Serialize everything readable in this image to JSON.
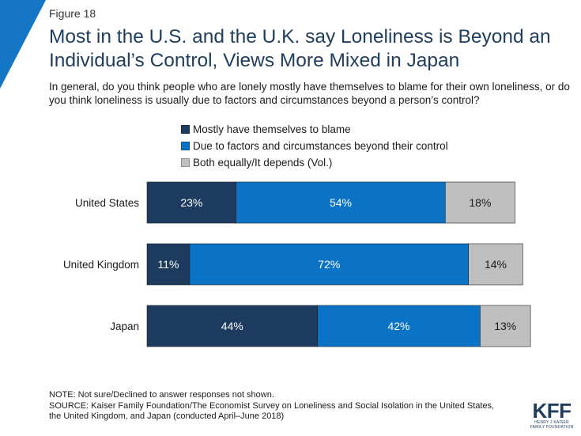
{
  "header": {
    "figure_label": "Figure 18",
    "title": "Most in the U.S. and the U.K. say Loneliness is Beyond an Individual’s Control, Views More Mixed in Japan",
    "subtitle": "In general, do you think people who are lonely mostly have themselves to blame for their own loneliness, or do you think loneliness is usually due to factors and circumstances beyond a person’s control?"
  },
  "colors": {
    "accent_corner": "#1476c4",
    "series": [
      "#1c3b5e",
      "#0b73c5",
      "#bfbfbf"
    ],
    "label_light": "#ffffff",
    "label_dark": "#1a1a1a"
  },
  "chart_data": {
    "type": "bar",
    "orientation": "horizontal",
    "stacked": true,
    "categories": [
      "United States",
      "United Kingdom",
      "Japan"
    ],
    "series": [
      {
        "name": "Mostly have themselves to blame",
        "values": [
          23,
          11,
          44
        ]
      },
      {
        "name": "Due to factors and circumstances beyond their control",
        "values": [
          54,
          72,
          42
        ]
      },
      {
        "name": "Both equally/It depends (Vol.)",
        "values": [
          18,
          14,
          13
        ]
      }
    ],
    "value_suffix": "%",
    "legend_position": "top",
    "grid": false
  },
  "footer": {
    "note": "NOTE: Not sure/Declined to answer responses not shown.",
    "source_lines": [
      "SOURCE: Kaiser Family Foundation/The Economist Survey on Loneliness and Social Isolation in the United States,",
      "the United Kingdom, and Japan (conducted April–June 2018)"
    ]
  },
  "logo": {
    "mark": "KFF",
    "subtitle": "HENRY J KAISER\nFAMILY FOUNDATION"
  }
}
